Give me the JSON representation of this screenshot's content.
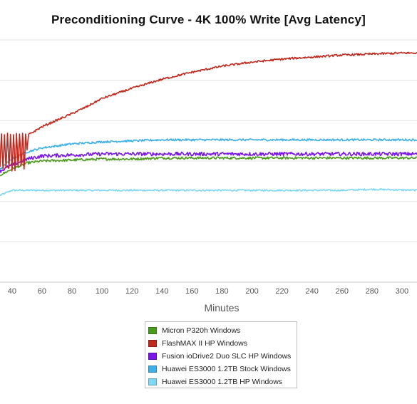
{
  "chart_data": {
    "type": "line",
    "title": "Preconditioning Curve - 4K 100% Write [Avg Latency]",
    "xlabel": "Minutes",
    "ylabel": "",
    "xlim": [
      32,
      310
    ],
    "ylim": [
      0,
      12
    ],
    "x_ticks": [
      40,
      60,
      80,
      100,
      120,
      140,
      160,
      180,
      200,
      220,
      240,
      260,
      280,
      300
    ],
    "grid": "horizontal",
    "legend_position": "bottom",
    "series": [
      {
        "name": "Micron P320h Windows",
        "color": "#4a9a1c",
        "x": [
          32,
          40,
          50,
          60,
          80,
          100,
          120,
          140,
          160,
          200,
          240,
          280,
          310
        ],
        "y": [
          5.3,
          5.6,
          5.9,
          6.0,
          6.05,
          6.1,
          6.1,
          6.15,
          6.15,
          6.15,
          6.15,
          6.15,
          6.15
        ]
      },
      {
        "name": "FlashMAX II HP Windows",
        "color": "#c0291e",
        "x": [
          32,
          50,
          51,
          60,
          80,
          90,
          100,
          120,
          140,
          160,
          180,
          200,
          220,
          240,
          260,
          280,
          300,
          310
        ],
        "y": [
          6.5,
          6.5,
          7.3,
          7.7,
          8.35,
          8.7,
          9.1,
          9.6,
          10.05,
          10.4,
          10.7,
          10.9,
          11.05,
          11.15,
          11.25,
          11.3,
          11.35,
          11.35
        ]
      },
      {
        "name": "Fusion ioDrive2 Duo SLC HP Windows",
        "color": "#7a16e6",
        "x": [
          32,
          40,
          50,
          60,
          80,
          100,
          140,
          180,
          220,
          260,
          310
        ],
        "y": [
          5.5,
          5.8,
          6.1,
          6.25,
          6.3,
          6.35,
          6.35,
          6.35,
          6.35,
          6.35,
          6.35
        ]
      },
      {
        "name": "Huawei ES3000 1.2TB Stock Windows",
        "color": "#3fb0e6",
        "x": [
          32,
          40,
          50,
          60,
          80,
          100,
          120,
          140,
          160,
          200,
          240,
          280,
          310
        ],
        "y": [
          5.6,
          6.1,
          6.45,
          6.65,
          6.85,
          6.95,
          7.0,
          7.05,
          7.05,
          7.05,
          7.05,
          7.05,
          7.05
        ]
      },
      {
        "name": "Huawei ES3000 1.2TB HP Windows",
        "color": "#7fd6f5",
        "x": [
          32,
          40,
          60,
          100,
          140,
          180,
          220,
          260,
          280,
          310
        ],
        "y": [
          4.3,
          4.55,
          4.55,
          4.55,
          4.55,
          4.55,
          4.55,
          4.55,
          4.6,
          4.55
        ]
      }
    ]
  }
}
